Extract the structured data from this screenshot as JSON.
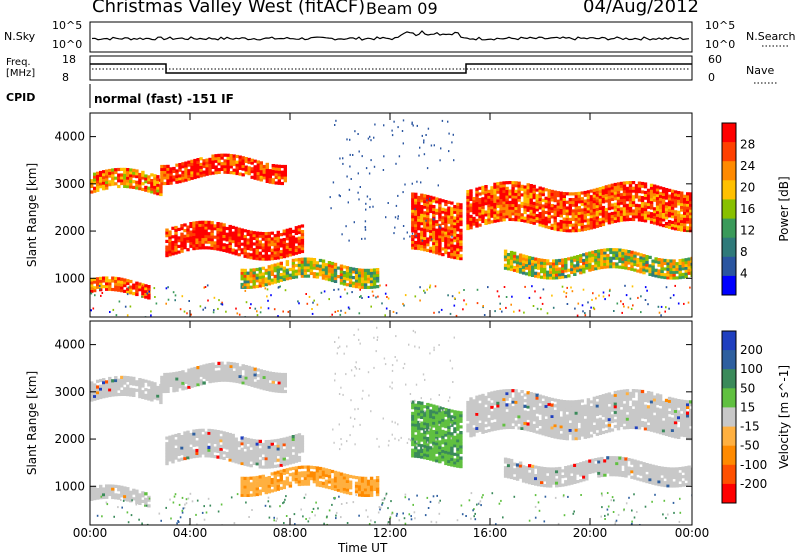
{
  "header": {
    "station": "Christmas Valley West (fitACF)",
    "beam": "Beam 09",
    "date": "04/Aug/2012"
  },
  "top_panels": {
    "nsky_label": "N.Sky",
    "nsky_ticks": [
      "10^5",
      "10^0"
    ],
    "nsearch_label": "N.Search",
    "nsearch_ticks": [
      "10^5",
      "10^0"
    ],
    "freq_label": [
      "Freq.",
      "[MHz]"
    ],
    "freq_ticks": [
      "18",
      "8"
    ],
    "nave_label": "Nave",
    "nave_ticks": [
      "60",
      "0"
    ],
    "cpid_label": "CPID",
    "cpid_value": "normal (fast) -151 IF"
  },
  "chart_data": [
    {
      "type": "heatmap",
      "title": "",
      "xlabel": "Time UT",
      "ylabel": "Slant Range [km]",
      "x_ticks": [
        "00:00",
        "04:00",
        "08:00",
        "12:00",
        "16:00",
        "20:00",
        "00:00"
      ],
      "y_ticks": [
        "4000",
        "3000",
        "2000",
        "1000"
      ],
      "ylim": [
        180,
        4500
      ],
      "colorbar": {
        "label": "Power [dB]",
        "ticks": [
          "28",
          "24",
          "20",
          "16",
          "12",
          "8",
          "4"
        ],
        "colors": [
          "#ff0000",
          "#ff4000",
          "#ff8a00",
          "#ffc000",
          "#88c000",
          "#3a9a5a",
          "#2f7a7a",
          "#2a55a0",
          "#0000ff"
        ]
      },
      "bands": [
        {
          "t": [
            0.0,
            2.8
          ],
          "r": [
            2800,
            3200
          ],
          "level": 0.75
        },
        {
          "t": [
            2.8,
            7.8
          ],
          "r": [
            3100,
            3500
          ],
          "level": 0.9
        },
        {
          "t": [
            3.0,
            8.5
          ],
          "r": [
            1500,
            2100
          ],
          "level": 0.95
        },
        {
          "t": [
            6.0,
            11.5
          ],
          "r": [
            900,
            1300
          ],
          "level": 0.55
        },
        {
          "t": [
            12.8,
            14.8
          ],
          "r": [
            1500,
            2700
          ],
          "level": 0.85
        },
        {
          "t": [
            15.0,
            24.0
          ],
          "r": [
            2100,
            2900
          ],
          "level": 0.85
        },
        {
          "t": [
            16.5,
            24.0
          ],
          "r": [
            1100,
            1500
          ],
          "level": 0.55
        },
        {
          "t": [
            0.0,
            2.4
          ],
          "r": [
            620,
            900
          ],
          "level": 0.8
        }
      ]
    },
    {
      "type": "heatmap",
      "title": "",
      "xlabel": "Time UT",
      "ylabel": "Slant Range [km]",
      "x_ticks": [
        "00:00",
        "04:00",
        "08:00",
        "12:00",
        "16:00",
        "20:00",
        "00:00"
      ],
      "y_ticks": [
        "4000",
        "3000",
        "2000",
        "1000"
      ],
      "ylim": [
        180,
        4500
      ],
      "colorbar": {
        "label": "Velocity [m s^-1]",
        "ticks": [
          "200",
          "100",
          "50",
          "15",
          "-15",
          "-50",
          "-100",
          "-200"
        ],
        "colors": [
          "#1f3fbf",
          "#2e5f9f",
          "#3a8a5a",
          "#60c040",
          "#c8c8c8",
          "#ffb040",
          "#ff8a00",
          "#ff5000",
          "#ff0000"
        ]
      },
      "bands": [
        {
          "t": [
            0.0,
            2.8
          ],
          "r": [
            2800,
            3200
          ],
          "v": 0
        },
        {
          "t": [
            2.8,
            7.8
          ],
          "r": [
            3100,
            3500
          ],
          "v": 0
        },
        {
          "t": [
            3.0,
            8.5
          ],
          "r": [
            1500,
            2100
          ],
          "v": 0
        },
        {
          "t": [
            6.0,
            11.5
          ],
          "r": [
            900,
            1300
          ],
          "v": -40
        },
        {
          "t": [
            12.8,
            14.8
          ],
          "r": [
            1500,
            2700
          ],
          "v": 45
        },
        {
          "t": [
            15.0,
            24.0
          ],
          "r": [
            2100,
            2900
          ],
          "v": 0
        },
        {
          "t": [
            16.5,
            24.0
          ],
          "r": [
            1100,
            1500
          ],
          "v": 0
        },
        {
          "t": [
            0.0,
            2.4
          ],
          "r": [
            620,
            900
          ],
          "v": 0
        }
      ]
    }
  ]
}
